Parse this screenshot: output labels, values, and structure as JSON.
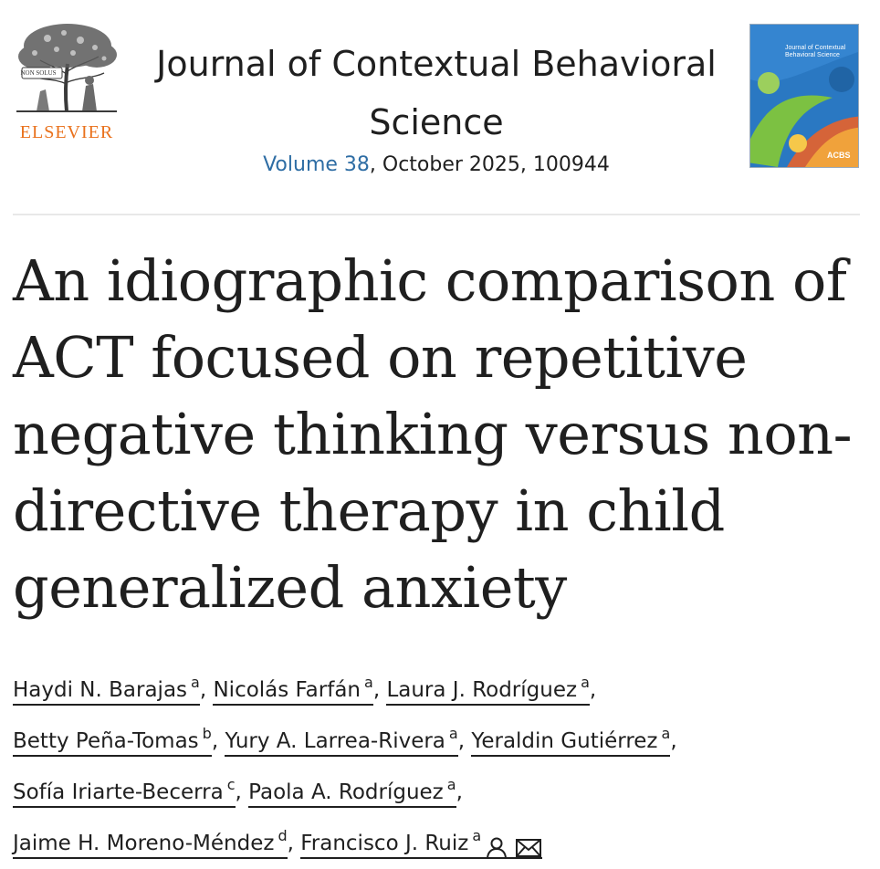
{
  "header": {
    "publisher": "ELSEVIER",
    "logo_motto": "NON SOLUS",
    "journal_title_line1": "Journal of Contextual Behavioral",
    "journal_title_line2": "Science",
    "volume_link": "Volume 38",
    "issue_rest": ", October 2025, 100944",
    "cover": {
      "title": "Journal of Contextual Behavioral Science",
      "brand": "ACBS",
      "colors": [
        "#2a78c2",
        "#7cc142",
        "#f0a23b",
        "#e8622a"
      ]
    }
  },
  "article": {
    "title_lines": [
      "An idiographic comparison of",
      "ACT focused on repetitive",
      "negative thinking versus non-",
      "directive therapy in child",
      "generalized anxiety"
    ]
  },
  "authors": [
    {
      "name": "Haydi N. Barajas",
      "aff": "a",
      "sep": ", "
    },
    {
      "name": "Nicolás Farfán",
      "aff": "a",
      "sep": ", "
    },
    {
      "name": "Laura J. Rodríguez",
      "aff": "a",
      "sep": ","
    },
    {
      "name": "Betty Peña-Tomas",
      "aff": "b",
      "sep": ", "
    },
    {
      "name": "Yury A. Larrea-Rivera",
      "aff": "a",
      "sep": ", "
    },
    {
      "name": "Yeraldin Gutiérrez",
      "aff": "a",
      "sep": ","
    },
    {
      "name": "Sofía Iriarte-Becerra",
      "aff": "c",
      "sep": ", "
    },
    {
      "name": "Paola A. Rodríguez",
      "aff": "a",
      "sep": ","
    },
    {
      "name": "Jaime H. Moreno-Méndez",
      "aff": "d",
      "sep": ", "
    },
    {
      "name": "Francisco J. Ruiz",
      "aff": "a",
      "sep": ""
    }
  ],
  "icons": {
    "corresponding": "person-icon",
    "email": "envelope-icon"
  }
}
